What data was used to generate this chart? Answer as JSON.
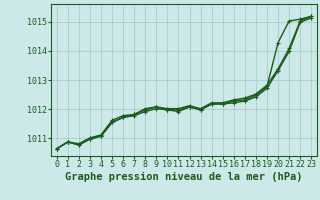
{
  "background_color": "#cce8e8",
  "grid_color": "#aacccc",
  "line_color": "#1a5c1a",
  "marker_color": "#1a5c1a",
  "xlabel": "Graphe pression niveau de la mer (hPa)",
  "xlabel_fontsize": 7.5,
  "ylim": [
    1010.4,
    1015.6
  ],
  "xlim": [
    -0.5,
    23.5
  ],
  "yticks": [
    1011,
    1012,
    1013,
    1014,
    1015
  ],
  "xticks": [
    0,
    1,
    2,
    3,
    4,
    5,
    6,
    7,
    8,
    9,
    10,
    11,
    12,
    13,
    14,
    15,
    16,
    17,
    18,
    19,
    20,
    21,
    22,
    23
  ],
  "series": [
    [
      1010.65,
      1010.88,
      1010.78,
      1010.98,
      1011.08,
      1011.55,
      1011.72,
      1011.78,
      1011.92,
      1012.02,
      1011.98,
      1011.98,
      1012.08,
      1011.98,
      1012.18,
      1012.18,
      1012.28,
      1012.32,
      1012.48,
      1012.78,
      1014.28,
      1015.02,
      1015.08,
      1015.18
    ],
    [
      1010.65,
      1010.88,
      1010.78,
      1010.98,
      1011.08,
      1011.55,
      1011.72,
      1011.82,
      1011.98,
      1012.08,
      1012.02,
      1012.02,
      1012.12,
      1012.02,
      1012.22,
      1012.22,
      1012.32,
      1012.38,
      1012.52,
      1012.82,
      1013.38,
      1014.08,
      1015.02,
      1015.18
    ],
    [
      1010.65,
      1010.88,
      1010.82,
      1011.02,
      1011.12,
      1011.62,
      1011.78,
      1011.82,
      1012.02,
      1012.08,
      1011.98,
      1011.92,
      1012.08,
      1011.98,
      1012.18,
      1012.18,
      1012.22,
      1012.28,
      1012.42,
      1012.72,
      1013.32,
      1013.98,
      1014.98,
      1015.12
    ]
  ],
  "linewidths": [
    1.0,
    1.0,
    1.0
  ],
  "marker_size": 2.5,
  "tick_fontsize": 6.0,
  "xlabel_bold": true
}
